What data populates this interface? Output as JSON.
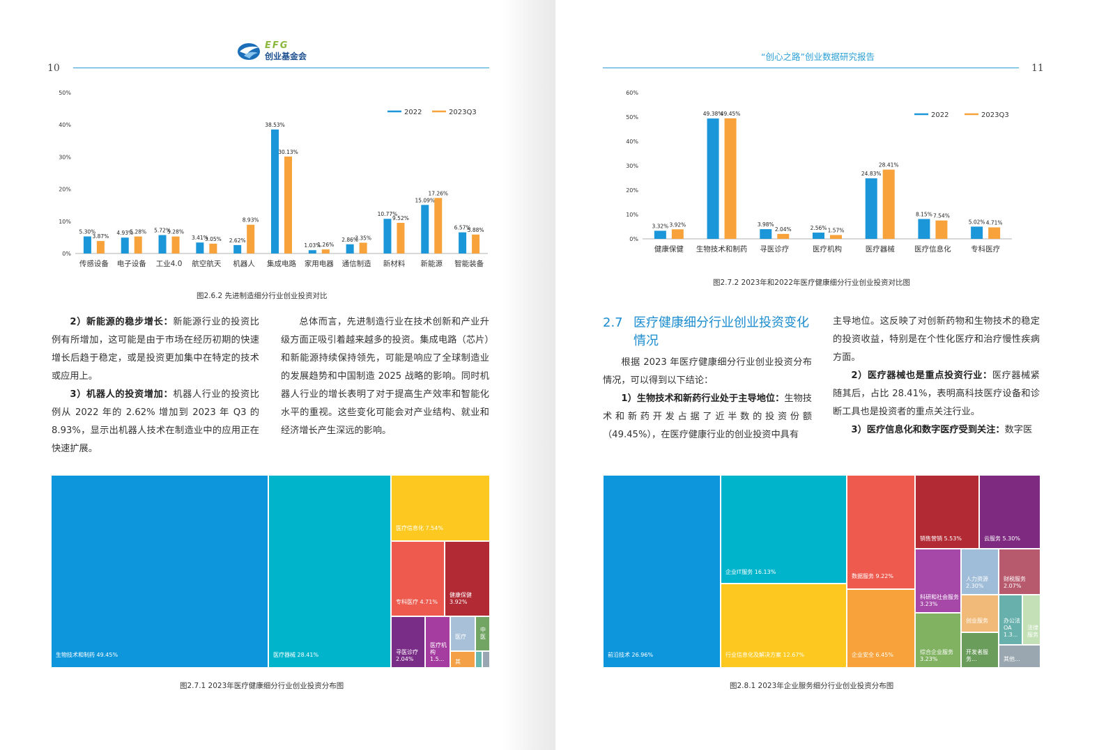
{
  "left": {
    "page_number": "10",
    "logo": {
      "letters": "EFG",
      "name": "创业基金会"
    },
    "chart": {
      "caption": "图2.6.2    先进制造细分行业创业投资对比"
    },
    "col1": {
      "p1_bold": "2）新能源的稳步增长：",
      "p1_text": "新能源行业的投资比例有所增加，这可能是由于市场在经历初期的快速增长后趋于稳定，或是投资更加集中在特定的技术或应用上。",
      "p2_bold": "3）机器人的投资增加：",
      "p2_text": "机器人行业的投资比例从 2022 年的 2.62% 增加到 2023 年 Q3 的 8.93%，显示出机器人技术在制造业中的应用正在快速扩展。"
    },
    "col2": {
      "p1_text": "总体而言，先进制造行业在技术创新和产业升级方面正吸引着越来越多的投资。集成电路（芯片）和新能源持续保持领先，可能是响应了全球制造业的发展趋势和中国制造 2025 战略的影响。同时机器人行业的增长表明了对于提高生产效率和智能化水平的重视。这些变化可能会对产业结构、就业和经济增长产生深远的影响。"
    },
    "treemap": {
      "caption": "图2.7.1    2023年医疗健康细分行业创业投资分布图",
      "cells": [
        {
          "label": "生物技术和制药 49.45%",
          "color": "#0e96dc"
        },
        {
          "label": "医疗器械 28.41%",
          "color": "#00b4cc"
        },
        {
          "label": "医疗信息化 7.54%",
          "color": "#fdc81f"
        },
        {
          "label": "专科医疗 4.71%",
          "color": "#ee5a4e"
        },
        {
          "label": "健康保健 3.92%",
          "color": "#b12a34"
        },
        {
          "label": "寻医诊疗 2.04%",
          "color": "#7a2d86"
        },
        {
          "label": "医疗机构 1.5...",
          "color": "#a53da0"
        },
        {
          "label": "医疗",
          "color": "#a8c0d8"
        },
        {
          "label": "中医",
          "color": "#72a463"
        },
        {
          "label": "其",
          "color": "#f3a046"
        },
        {
          "label": "",
          "color": "#6ab7b0"
        },
        {
          "label": "",
          "color": "#9aa7b3"
        }
      ]
    }
  },
  "right": {
    "page_number": "11",
    "header_title": "“创心之路”创业数据研究报告",
    "chart": {
      "caption": "图2.7.2    2023年和2022年医疗健康细分行业创业投资对比图"
    },
    "section": {
      "number": "2.7",
      "title_line1": "医疗健康细分行业创业投资变化",
      "title_line2": "情况"
    },
    "col1": {
      "p1_text": "根据 2023 年医疗健康细分行业创业投资分布情况，可以得到以下结论：",
      "p2_bold": "1）生物技术和新药行业处于主导地位：",
      "p2_text": "生物技术和新药开发占据了近半数的投资份额（49.45%），在医疗健康行业的创业投资中具有"
    },
    "col2": {
      "p1_text": "主导地位。这反映了对创新药物和生物技术的稳定的投资收益，特别是在个性化医疗和治疗慢性疾病方面。",
      "p2_bold": "2）医疗器械也是重点投资行业：",
      "p2_text": "医疗器械紧随其后，占比 28.41%，表明高科技医疗设备和诊断工具也是投资者的重点关注行业。",
      "p3_bold": "3）医疗信息化和数字医疗受到关注：",
      "p3_text": "数字医"
    },
    "treemap": {
      "caption": "图2.8.1    2023年企业服务细分行业创业投资分布图",
      "cells": [
        {
          "label": "前沿技术 26.96%",
          "color": "#0e96dc"
        },
        {
          "label": "企业IT服务 16.13%",
          "color": "#00b4cc"
        },
        {
          "label": "行业信息化及解决方案 12.67%",
          "color": "#fdc81f"
        },
        {
          "label": "数据服务 9.22%",
          "color": "#ee5a4e"
        },
        {
          "label": "企业安全 6.45%",
          "color": "#f7a23a"
        },
        {
          "label": "销售营销 5.53%",
          "color": "#b12a34"
        },
        {
          "label": "云服务 5.30%",
          "color": "#7d2a80"
        },
        {
          "label": "科研和社会服务 3.23%",
          "color": "#a548a8"
        },
        {
          "label": "人力资源 2.30%",
          "color": "#9fbcd8"
        },
        {
          "label": "财税服务 2.07%",
          "color": "#b85a6e"
        },
        {
          "label": "综合企业服务 3.23%",
          "color": "#80b262"
        },
        {
          "label": "创业服务",
          "color": "#f1ba79"
        },
        {
          "label": "开发者服务...",
          "color": "#6a9c5c"
        },
        {
          "label": "办公法OA 1.3...",
          "color": "#67b0ac"
        },
        {
          "label": "法律服务",
          "color": "#c3e0b6"
        },
        {
          "label": "其他...",
          "color": "#9aa7b0"
        }
      ]
    }
  },
  "chart_data": [
    {
      "type": "bar",
      "categories": [
        "传感设备",
        "电子设备",
        "工业4.0",
        "航空航天",
        "机器人",
        "集成电路",
        "家用电器",
        "通信制造",
        "新材料",
        "新能源",
        "智能装备"
      ],
      "series": [
        {
          "name": "2022",
          "color": "#1a96d9",
          "values": [
            5.3,
            4.93,
            5.72,
            3.41,
            2.62,
            38.53,
            1.03,
            2.86,
            10.77,
            15.09,
            6.57
          ]
        },
        {
          "name": "2023Q3",
          "color": "#f7a23a",
          "values": [
            3.87,
            5.28,
            5.28,
            3.05,
            8.93,
            30.13,
            1.26,
            3.35,
            9.52,
            17.26,
            5.88
          ]
        }
      ],
      "labels_2022": [
        "5.30%",
        "4.93%",
        "5.72%",
        "3.41%",
        "2.62%",
        "38.53%",
        "1.03%",
        "2.86%",
        "10.77%",
        "15.09%",
        "6.57%"
      ],
      "labels_2023": [
        "3.87%",
        "5.28%",
        "5.28%",
        "3.05%",
        "8.93%",
        "30.13%",
        "1.26%",
        "3.35%",
        "9.52%",
        "17.26%",
        "5.88%"
      ],
      "yticks": [
        "0%",
        "10%",
        "20%",
        "30%",
        "40%",
        "50%"
      ],
      "ylim": [
        0,
        50
      ],
      "legend": "top-right",
      "grid": false
    },
    {
      "type": "bar",
      "categories": [
        "健康保健",
        "生物技术和制药",
        "寻医诊疗",
        "医疗机构",
        "医疗器械",
        "医疗信息化",
        "专科医疗"
      ],
      "series": [
        {
          "name": "2022",
          "color": "#1a96d9",
          "values": [
            3.32,
            49.38,
            3.98,
            2.56,
            24.83,
            8.15,
            5.02
          ]
        },
        {
          "name": "2023Q3",
          "color": "#f7a23a",
          "values": [
            3.92,
            49.45,
            2.04,
            1.57,
            28.41,
            7.54,
            4.71
          ]
        }
      ],
      "labels_2022": [
        "3.32%",
        "49.38%",
        "3.98%",
        "2.56%",
        "24.83%",
        "8.15%",
        "5.02%"
      ],
      "labels_2023": [
        "3.92%",
        "49.45%",
        "2.04%",
        "1.57%",
        "28.41%",
        "7.54%",
        "4.71%"
      ],
      "yticks": [
        "0%",
        "10%",
        "20%",
        "30%",
        "40%",
        "50%",
        "60%"
      ],
      "ylim": [
        0,
        60
      ],
      "legend": "top-right",
      "grid": false
    }
  ]
}
